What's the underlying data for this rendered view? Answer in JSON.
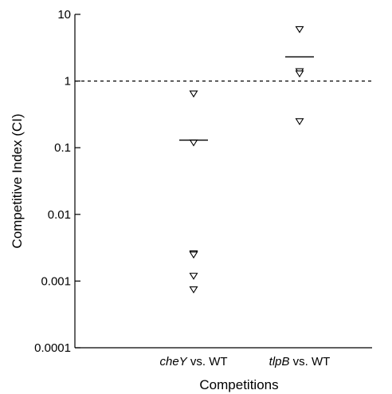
{
  "chart_data": {
    "type": "scatter",
    "xlabel": "Competitions",
    "ylabel": "Competitive Index (CI)",
    "y_scale": "log",
    "ylim": [
      0.0001,
      10
    ],
    "y_ticks": [
      {
        "value": 10,
        "label": "10"
      },
      {
        "value": 1,
        "label": "1"
      },
      {
        "value": 0.1,
        "label": "0.1"
      },
      {
        "value": 0.01,
        "label": "0.01"
      },
      {
        "value": 0.001,
        "label": "0.001"
      },
      {
        "value": 0.0001,
        "label": "0.0001"
      }
    ],
    "reference_line": {
      "y": 1,
      "style": "dashed"
    },
    "marker": "open-triangle-down",
    "categories": [
      {
        "gene": "cheY",
        "suffix": " vs. WT",
        "points": [
          0.65,
          0.12,
          0.0026,
          0.0025,
          0.0012,
          0.00075
        ],
        "mean": 0.13
      },
      {
        "gene": "tlpB",
        "suffix": " vs. WT",
        "points": [
          6.0,
          1.4,
          1.3,
          0.25
        ],
        "mean": 2.3
      }
    ],
    "grid": false
  }
}
